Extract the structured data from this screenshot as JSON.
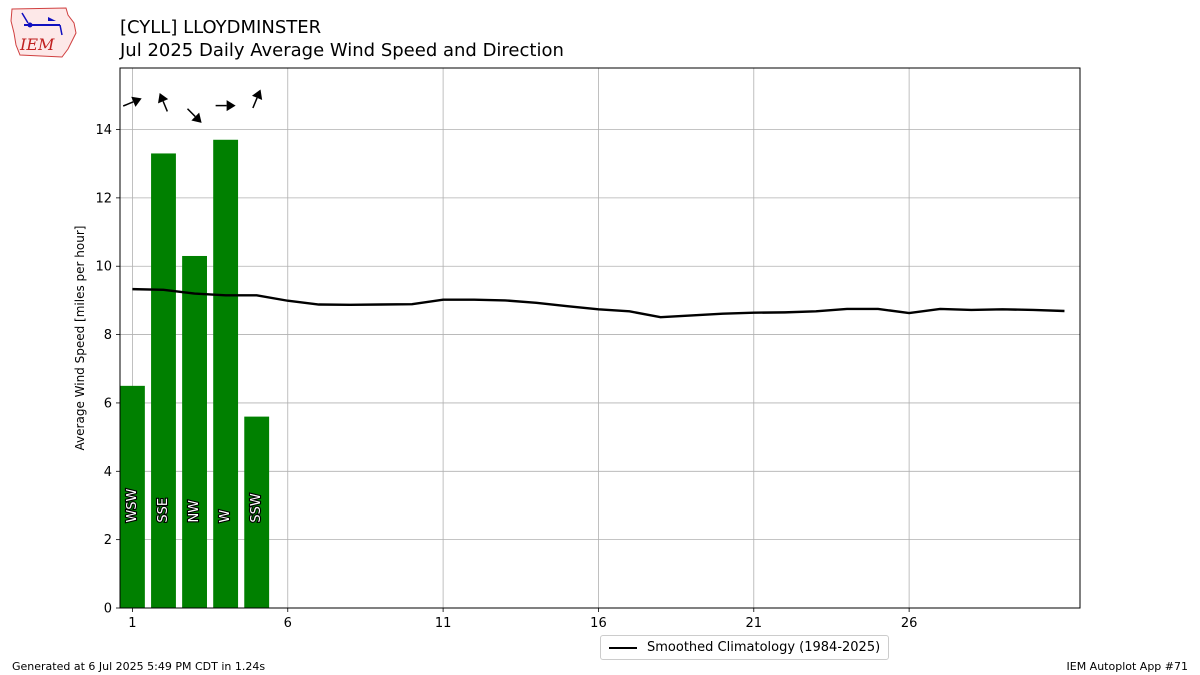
{
  "header": {
    "title_line1": "[CYLL] LLOYDMINSTER",
    "title_line2": "Jul 2025 Daily Average Wind Speed and Direction",
    "logo_text": "IEM"
  },
  "footer": {
    "generated": "Generated at 6 Jul 2025 5:49 PM CDT in 1.24s",
    "app": "IEM Autoplot App #71"
  },
  "colors": {
    "bar": "#008000",
    "climatology": "#000000",
    "grid": "#b0b0b0"
  },
  "chart_data": {
    "type": "bar",
    "ylabel": "Average Wind Speed [miles per hour]",
    "xlabel": "",
    "xlim": [
      0.6,
      31.5
    ],
    "ylim": [
      0,
      15.8
    ],
    "xticks": [
      1,
      6,
      11,
      16,
      21,
      26
    ],
    "yticks": [
      0,
      2,
      4,
      6,
      8,
      10,
      12,
      14
    ],
    "grid": true,
    "legend_position": "bottom-center",
    "bars": {
      "days": [
        1,
        2,
        3,
        4,
        5
      ],
      "values": [
        6.5,
        13.3,
        10.3,
        13.7,
        5.6
      ],
      "direction_labels": [
        "WSW",
        "SSE",
        "NW",
        "W",
        "SSW"
      ],
      "direction_degrees": [
        247.5,
        157.5,
        315,
        270,
        202.5
      ]
    },
    "series": [
      {
        "name": "Smoothed Climatology (1984-2025)",
        "x": [
          1,
          2,
          3,
          4,
          5,
          6,
          7,
          8,
          9,
          10,
          11,
          12,
          13,
          14,
          15,
          16,
          17,
          18,
          19,
          20,
          21,
          22,
          23,
          24,
          25,
          26,
          27,
          28,
          29,
          30,
          31
        ],
        "values": [
          9.33,
          9.31,
          9.2,
          9.15,
          9.15,
          8.99,
          8.88,
          8.87,
          8.88,
          8.89,
          9.02,
          9.02,
          9.0,
          8.93,
          8.83,
          8.74,
          8.68,
          8.51,
          8.56,
          8.61,
          8.64,
          8.65,
          8.68,
          8.75,
          8.75,
          8.63,
          8.75,
          8.72,
          8.74,
          8.72,
          8.69
        ]
      }
    ]
  }
}
